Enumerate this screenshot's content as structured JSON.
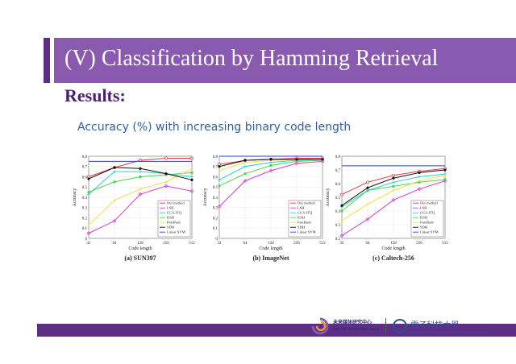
{
  "slide": {
    "title": "(V)  Classification by Hamming Retrieval",
    "results_heading": "Results:",
    "subtitle": "Accuracy (%) with increasing binary code length"
  },
  "footer": {
    "lab_name_cn": "未来媒体研究中心",
    "lab_name_en": "CENTER FOR FUTURE MEDIA",
    "university_cn": "電子科技大學",
    "university_en": "University of Electronic Science and Technology of China"
  },
  "colors": {
    "Our method": "#e8383d",
    "LSH": "#d63fd6",
    "CCA-ITQ": "#2bd0d0",
    "KSH": "#4fd44f",
    "FastHash": "#f0e040",
    "SDH": "#111111",
    "Linear SVM": "#2a3fd6"
  },
  "chart_data": [
    {
      "type": "line",
      "caption": "(a) SUN397",
      "xlabel": "Code length",
      "ylabel": "Accuracy",
      "categories": [
        "32",
        "64",
        "128",
        "256",
        "512"
      ],
      "ylim": [
        0,
        0.8
      ],
      "yticks": [
        "0",
        "0.1",
        "0.2",
        "0.3",
        "0.4",
        "0.5",
        "0.6",
        "0.7",
        "0.8"
      ],
      "legend_position": "bottom-right",
      "series": [
        {
          "name": "Our method",
          "values": [
            0.6,
            0.69,
            0.76,
            0.78,
            0.78
          ]
        },
        {
          "name": "LSH",
          "values": [
            0.05,
            0.17,
            0.43,
            0.51,
            0.46
          ]
        },
        {
          "name": "CCA-ITQ",
          "values": [
            0.43,
            0.65,
            0.65,
            0.63,
            0.6
          ]
        },
        {
          "name": "KSH",
          "values": [
            0.45,
            0.55,
            0.6,
            0.62,
            0.64
          ]
        },
        {
          "name": "FastHash",
          "values": [
            0.13,
            0.37,
            0.48,
            0.55,
            0.68
          ]
        },
        {
          "name": "SDH",
          "values": [
            0.58,
            0.69,
            0.68,
            0.63,
            0.57
          ]
        },
        {
          "name": "Linear SVM",
          "values": [
            0.75,
            0.75,
            0.75,
            0.75,
            0.75
          ]
        }
      ]
    },
    {
      "type": "line",
      "caption": "(b) ImageNet",
      "xlabel": "Code length",
      "ylabel": "Accuracy",
      "categories": [
        "32",
        "64",
        "128",
        "256",
        "512"
      ],
      "ylim": [
        0,
        0.8
      ],
      "yticks": [
        "0",
        "0.1",
        "0.2",
        "0.3",
        "0.4",
        "0.5",
        "0.6",
        "0.7",
        "0.8"
      ],
      "legend_position": "bottom-right",
      "series": [
        {
          "name": "Our method",
          "values": [
            0.72,
            0.76,
            0.77,
            0.78,
            0.78
          ]
        },
        {
          "name": "LSH",
          "values": [
            0.31,
            0.56,
            0.66,
            0.73,
            0.75
          ]
        },
        {
          "name": "CCA-ITQ",
          "values": [
            0.57,
            0.7,
            0.74,
            0.76,
            0.77
          ]
        },
        {
          "name": "KSH",
          "values": [
            0.51,
            0.63,
            0.71,
            0.75,
            0.76
          ]
        },
        {
          "name": "FastHash",
          "values": [
            0.66,
            0.74,
            0.76,
            0.77,
            0.77
          ]
        },
        {
          "name": "SDH",
          "values": [
            0.7,
            0.76,
            0.77,
            0.77,
            0.77
          ]
        },
        {
          "name": "Linear SVM",
          "values": [
            0.8,
            0.8,
            0.8,
            0.8,
            0.8
          ]
        }
      ]
    },
    {
      "type": "line",
      "caption": "(c) Caltech-256",
      "xlabel": "Code length",
      "ylabel": "Accuracy",
      "categories": [
        "32",
        "64",
        "128",
        "256",
        "512"
      ],
      "ylim": [
        0.2,
        0.8
      ],
      "yticks": [
        "0.2",
        "0.3",
        "0.4",
        "0.5",
        "0.6",
        "0.7",
        "0.8"
      ],
      "legend_position": "bottom-right",
      "series": [
        {
          "name": "Our method",
          "values": [
            0.52,
            0.61,
            0.66,
            0.69,
            0.71
          ]
        },
        {
          "name": "LSH",
          "values": [
            0.22,
            0.34,
            0.48,
            0.56,
            0.62
          ]
        },
        {
          "name": "CCA-ITQ",
          "values": [
            0.43,
            0.55,
            0.61,
            0.65,
            0.67
          ]
        },
        {
          "name": "KSH",
          "values": [
            0.4,
            0.55,
            0.58,
            0.61,
            0.63
          ]
        },
        {
          "name": "FastHash",
          "values": [
            0.33,
            0.45,
            0.55,
            0.62,
            0.66
          ]
        },
        {
          "name": "SDH",
          "values": [
            0.44,
            0.57,
            0.64,
            0.68,
            0.7
          ]
        },
        {
          "name": "Linear SVM",
          "values": [
            0.73,
            0.73,
            0.73,
            0.73,
            0.73
          ]
        }
      ]
    }
  ]
}
